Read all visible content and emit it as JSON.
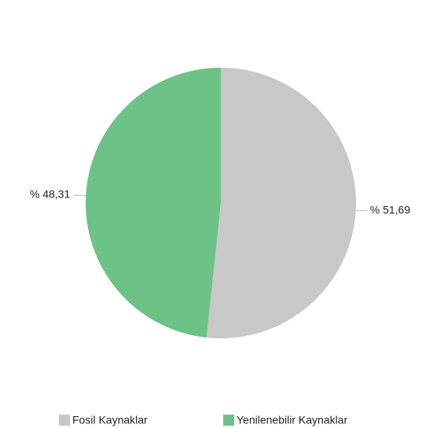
{
  "chart_data": {
    "type": "pie",
    "categories": [
      "Fosil Kaynaklar",
      "Yenilenebilir Kaynaklar"
    ],
    "values": [
      51.69,
      48.31
    ],
    "value_labels": [
      "% 51,69",
      "% 48,31"
    ],
    "colors": [
      "#c8c8c8",
      "#6cc287"
    ],
    "legend": "bottom"
  }
}
